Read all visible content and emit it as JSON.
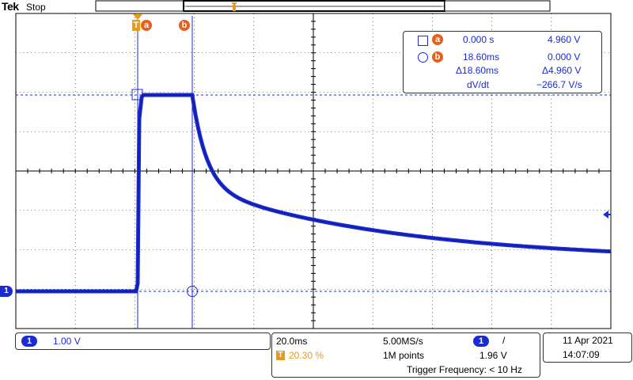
{
  "header": {
    "brand": "Tek",
    "run_state": "Stop"
  },
  "cursors": {
    "a_label": "a",
    "b_label": "b",
    "trigger_marker": "T",
    "channel_marker": "1"
  },
  "readout": {
    "a_time": "0.000 s",
    "a_volt": "4.960 V",
    "b_time": "18.60ms",
    "b_volt": "0.000 V",
    "delta_time": "Δ18.60ms",
    "delta_volt": "Δ4.960 V",
    "dvdt_label": "dV/dt",
    "dvdt_value": "−266.7 V/s"
  },
  "channel": {
    "number": "1",
    "scale": "1.00 V"
  },
  "timebase": {
    "time_per_div": "20.0ms",
    "sample_rate": "5.00MS/s",
    "trigger_position": "20.30 %",
    "record_length": "1M points"
  },
  "trigger": {
    "source": "1",
    "slope": "/",
    "level": "1.96 V",
    "frequency": "Trigger Frequency: < 10 Hz"
  },
  "clock": {
    "date": "11 Apr  2021",
    "time": "14:07:09"
  },
  "colors": {
    "trace": "#1a2bd1",
    "cursor": "#e8601c",
    "trigger": "#e89b16",
    "grid": "#000000"
  }
}
